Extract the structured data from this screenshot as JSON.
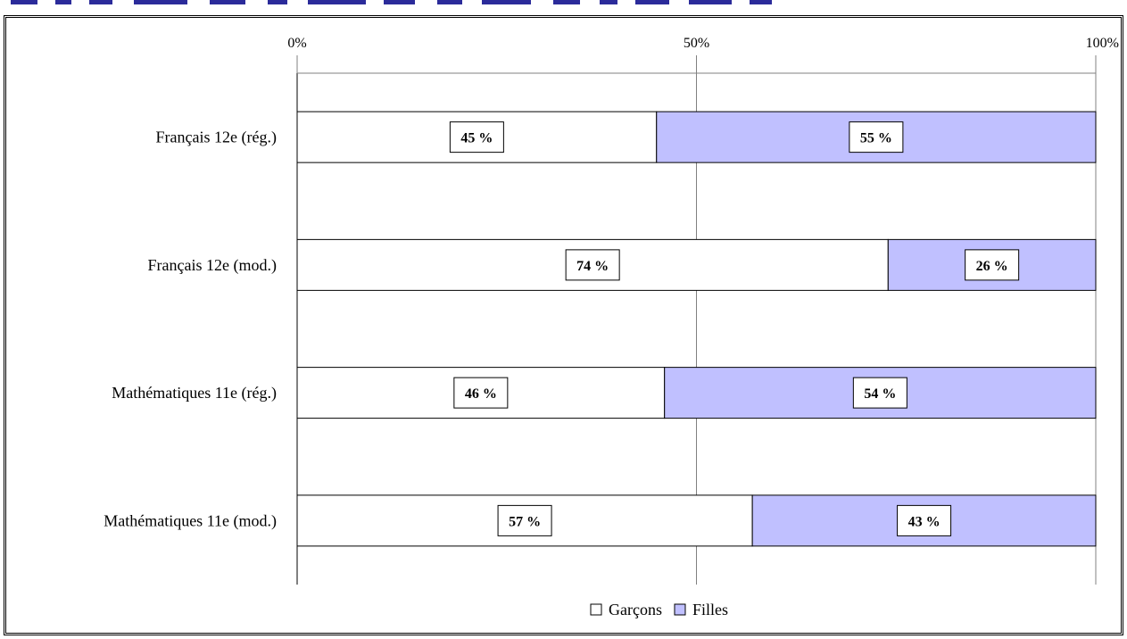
{
  "chart_data": {
    "type": "bar",
    "orientation": "horizontal",
    "stacked": true,
    "normalized": true,
    "categories": [
      "Français 12e (rég.)",
      "Français 12e (mod.)",
      "Mathématiques 11e (rég.)",
      "Mathématiques 11e (mod.)"
    ],
    "series": [
      {
        "name": "Garçons",
        "values": [
          45,
          74,
          46,
          57
        ],
        "labels": [
          "45 %",
          "74 %",
          "46 %",
          "57 %"
        ],
        "color": "#ffffff"
      },
      {
        "name": "Filles",
        "values": [
          55,
          26,
          54,
          43
        ],
        "labels": [
          "55 %",
          "26 %",
          "54 %",
          "43 %"
        ],
        "color": "#c0c0ff"
      }
    ],
    "xticks": [
      "0%",
      "50%",
      "100%"
    ],
    "xlim": [
      0,
      100
    ],
    "x_axis_position": "top",
    "grid": true,
    "legend_position": "bottom"
  },
  "colors": {
    "title_strip": "#2b2b9a",
    "grid": "#808080",
    "bar_border": "#000000"
  }
}
